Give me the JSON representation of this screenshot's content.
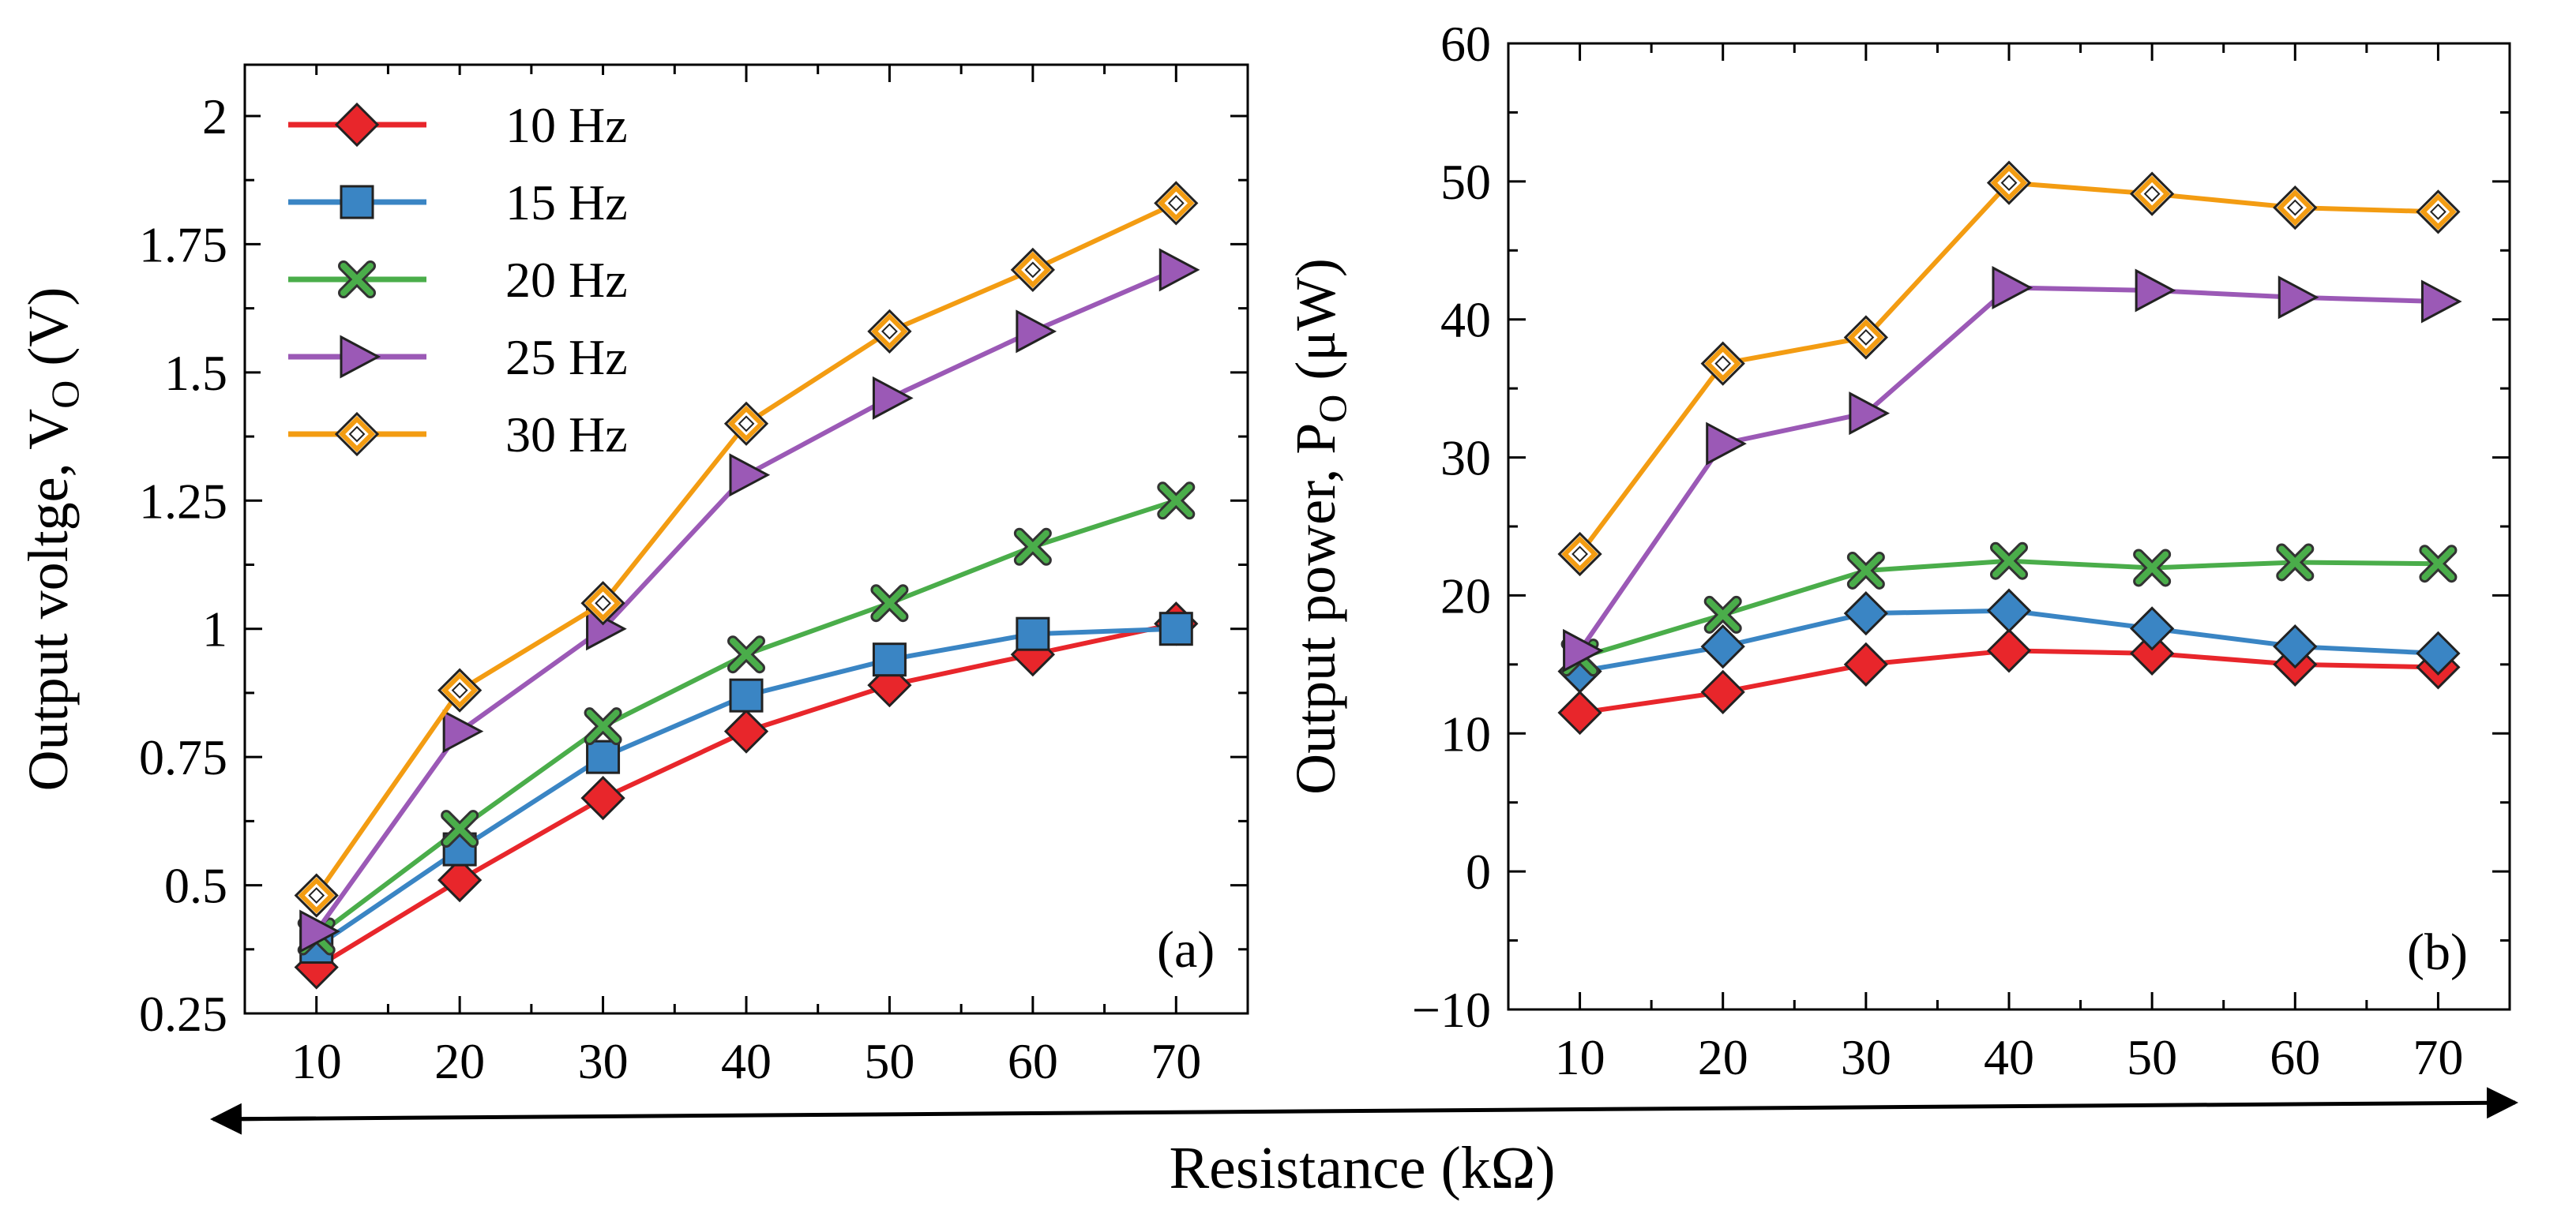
{
  "x_axis_title": "Resistance (kΩ)",
  "series_styles": [
    {
      "name": "10 Hz",
      "color": "#e8262b",
      "marker": "diamond"
    },
    {
      "name": "15 Hz",
      "color": "#3a85c4",
      "marker": "square"
    },
    {
      "name": "20 Hz",
      "color": "#4aad4a",
      "marker": "x"
    },
    {
      "name": "25 Hz",
      "color": "#9b59b6",
      "marker": "triangle-right"
    },
    {
      "name": "30 Hz",
      "color": "#f39c12",
      "marker": "diamond-open"
    }
  ],
  "chart_data": [
    {
      "type": "line",
      "panel_label": "(a)",
      "title": "",
      "xlabel": "Resistance (kΩ)",
      "ylabel_main": "Output voltge, V",
      "ylabel_sub": "O",
      "ylabel_unit": " (V)",
      "x": [
        10,
        20,
        30,
        40,
        50,
        60,
        70
      ],
      "xticks": [
        "10",
        "20",
        "30",
        "40",
        "50",
        "60",
        "70"
      ],
      "xlim": [
        5,
        75
      ],
      "ylim": [
        0.25,
        2.1
      ],
      "yticks": [
        0.25,
        0.5,
        0.75,
        1.0,
        1.25,
        1.5,
        1.75,
        2.0
      ],
      "ytick_labels": [
        "0.25",
        "0.5",
        "0.75",
        "1",
        "1.25",
        "1.5",
        "1.75",
        "2"
      ],
      "legend": "top-left",
      "series": [
        {
          "name": "10 Hz",
          "values": [
            0.34,
            0.51,
            0.67,
            0.8,
            0.89,
            0.95,
            1.01
          ]
        },
        {
          "name": "15 Hz",
          "values": [
            0.38,
            0.57,
            0.75,
            0.87,
            0.94,
            0.99,
            1.0
          ]
        },
        {
          "name": "20 Hz",
          "values": [
            0.4,
            0.61,
            0.81,
            0.95,
            1.05,
            1.16,
            1.25
          ]
        },
        {
          "name": "25 Hz",
          "values": [
            0.41,
            0.8,
            1.0,
            1.3,
            1.45,
            1.58,
            1.7
          ]
        },
        {
          "name": "30 Hz",
          "values": [
            0.48,
            0.88,
            1.05,
            1.4,
            1.58,
            1.7,
            1.83
          ]
        }
      ]
    },
    {
      "type": "line",
      "panel_label": "(b)",
      "title": "",
      "xlabel": "Resistance (kΩ)",
      "ylabel_main": "Output power, P",
      "ylabel_sub": "O",
      "ylabel_unit": " (μW)",
      "x": [
        10,
        20,
        30,
        40,
        50,
        60,
        70
      ],
      "xticks": [
        "10",
        "20",
        "30",
        "40",
        "50",
        "60",
        "70"
      ],
      "xlim": [
        5,
        75
      ],
      "ylim": [
        -10,
        60
      ],
      "yticks": [
        -10,
        0,
        10,
        20,
        30,
        40,
        50,
        60
      ],
      "ytick_labels": [
        "−10",
        "0",
        "10",
        "20",
        "30",
        "40",
        "50",
        "60"
      ],
      "legend": "",
      "series": [
        {
          "name": "10 Hz",
          "marker": "diamond",
          "values": [
            11.5,
            13.0,
            15.0,
            16.0,
            15.8,
            15.0,
            14.8
          ]
        },
        {
          "name": "15 Hz",
          "marker": "diamond",
          "values": [
            14.5,
            16.3,
            18.7,
            18.9,
            17.6,
            16.3,
            15.8
          ]
        },
        {
          "name": "20 Hz",
          "values": [
            15.5,
            18.6,
            21.8,
            22.5,
            22.0,
            22.4,
            22.3
          ]
        },
        {
          "name": "25 Hz",
          "values": [
            16.0,
            31.0,
            33.2,
            42.3,
            42.1,
            41.6,
            41.3
          ]
        },
        {
          "name": "30 Hz",
          "values": [
            23.0,
            36.8,
            38.7,
            49.9,
            49.1,
            48.1,
            47.8
          ]
        }
      ]
    }
  ]
}
